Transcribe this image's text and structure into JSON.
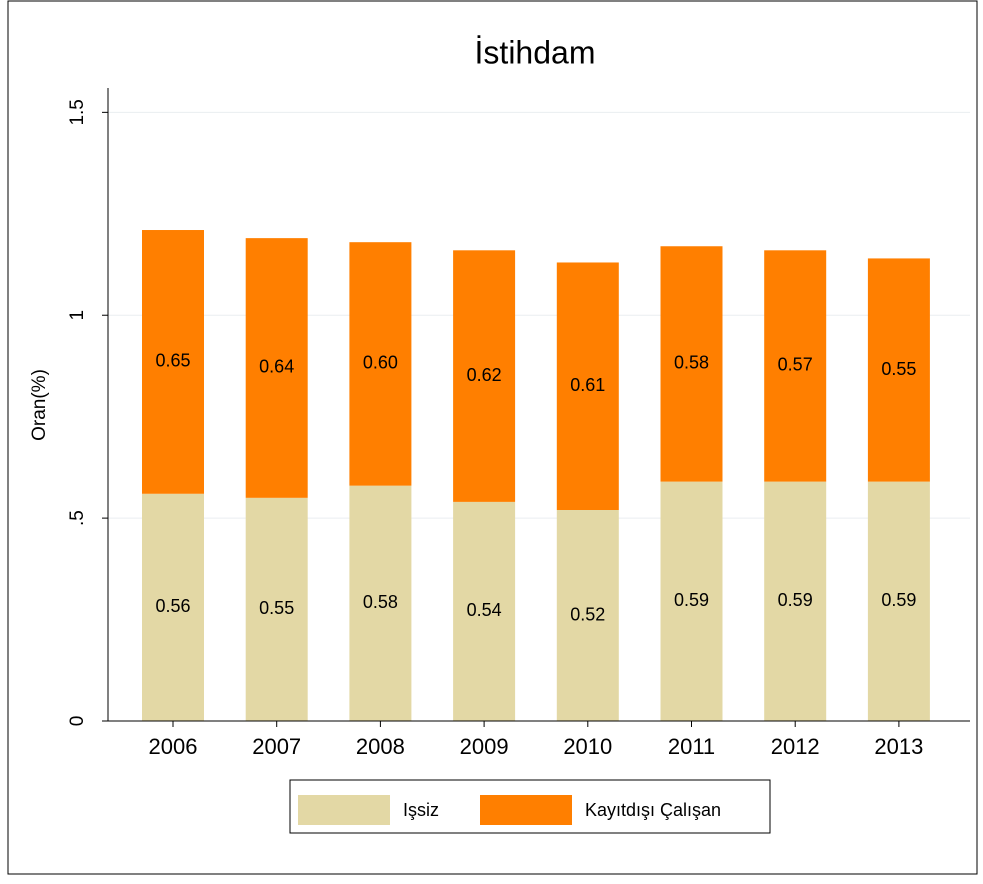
{
  "chart_data": {
    "type": "stacked_bar",
    "title": "İstihdam",
    "y_label": "Oran(%)",
    "categories": [
      "2006",
      "2007",
      "2008",
      "2009",
      "2010",
      "2011",
      "2012",
      "2013"
    ],
    "series": [
      {
        "name": "Işsiz",
        "color": "#e3d8a5",
        "values": [
          0.56,
          0.55,
          0.58,
          0.54,
          0.52,
          0.59,
          0.59,
          0.59
        ],
        "value_labels": [
          "0.56",
          "0.55",
          "0.58",
          "0.54",
          "0.52",
          "0.59",
          "0.59",
          "0.59"
        ]
      },
      {
        "name": "Kayıtdışı Çalışan",
        "color": "#ff7f00",
        "values": [
          0.65,
          0.64,
          0.6,
          0.62,
          0.61,
          0.58,
          0.57,
          0.55
        ],
        "value_labels": [
          "0.65",
          "0.64",
          "0.60",
          "0.62",
          "0.61",
          "0.58",
          "0.57",
          "0.55"
        ]
      }
    ],
    "ylim": [
      0,
      1.56
    ],
    "yticks": [
      0,
      {
        "value": 0.5,
        "label": ".5"
      },
      1,
      1.5
    ],
    "grid": true,
    "legend": "bottom"
  }
}
